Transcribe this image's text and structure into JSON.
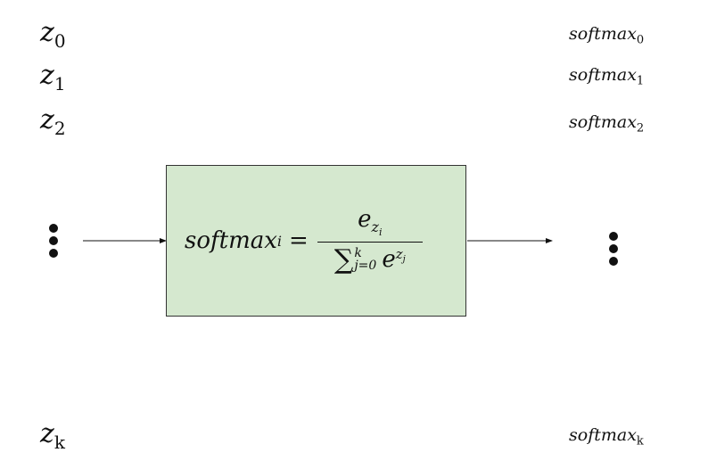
{
  "inputs": {
    "items": [
      {
        "base": "z",
        "index": "0"
      },
      {
        "base": "z",
        "index": "1"
      },
      {
        "base": "z",
        "index": "2"
      },
      {
        "base": "z",
        "index": "k"
      }
    ]
  },
  "outputs": {
    "items": [
      {
        "base": "softmax",
        "index": "0"
      },
      {
        "base": "softmax",
        "index": "1"
      },
      {
        "base": "softmax",
        "index": "2"
      },
      {
        "base": "softmax",
        "index": "k"
      }
    ]
  },
  "formula": {
    "lhs": "softmax",
    "lhs_index": "i",
    "equals": "=",
    "num_base": "e",
    "num_sub_base": "z",
    "num_sub_index": "i",
    "sum_symbol": "∑",
    "sum_upper": "k",
    "sum_lower": "j=0",
    "den_base": "e",
    "den_exp_base": "z",
    "den_exp_index": "j"
  },
  "colors": {
    "box_fill": "#d5e8cf",
    "box_border": "#333333",
    "ink": "#111111"
  }
}
